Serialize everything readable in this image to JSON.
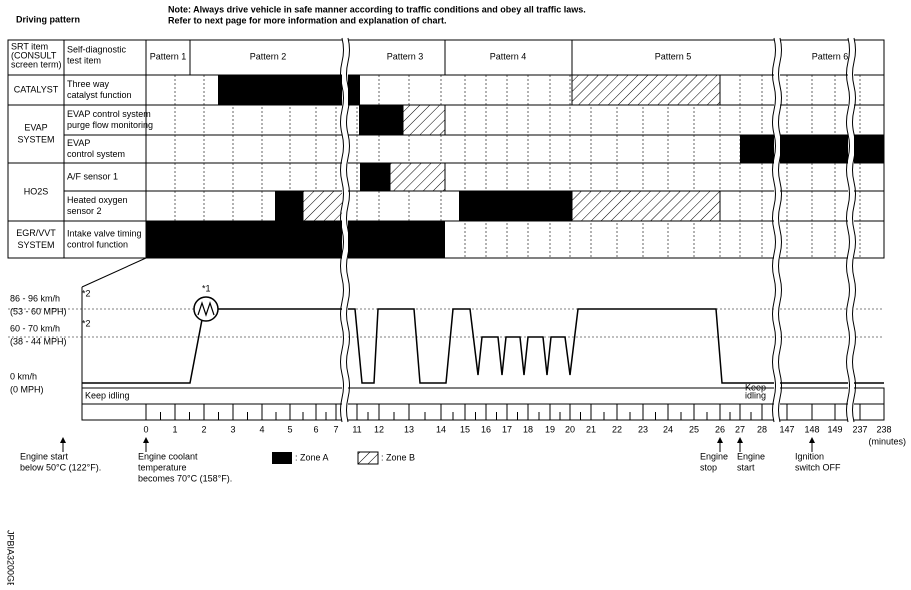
{
  "header": {
    "title": "Driving pattern",
    "note": [
      "Note: Always drive vehicle in safe manner according to traffic conditions and obey all traffic laws.",
      "Refer to next page for more information and explanation of chart."
    ]
  },
  "table": {
    "head": {
      "srt": [
        "SRT item",
        "(CONSULT",
        "screen term)"
      ],
      "test": [
        "Self-diagnostic",
        "test item"
      ],
      "patterns": [
        "Pattern 1",
        "Pattern 2",
        "Pattern 3",
        "Pattern 4",
        "Pattern 5",
        "Pattern 6"
      ]
    },
    "groups": [
      {
        "name": [
          "CATALYST"
        ],
        "items": [
          [
            "Three way",
            "catalyst function"
          ]
        ]
      },
      {
        "name": [
          "EVAP",
          "SYSTEM"
        ],
        "items": [
          [
            "EVAP control system",
            "purge flow monitoring"
          ],
          [
            "EVAP",
            "control system"
          ]
        ]
      },
      {
        "name": [
          "HO2S"
        ],
        "items": [
          [
            "A/F sensor 1"
          ],
          [
            "Heated oxygen",
            "sensor 2"
          ]
        ]
      },
      {
        "name": [
          "EGR/VVT",
          "SYSTEM"
        ],
        "items": [
          [
            "Intake valve timing",
            "control function"
          ]
        ]
      }
    ]
  },
  "speed": {
    "levels": [
      {
        "lines": [
          "86 - 96 km/h",
          "(53 - 60 MPH)"
        ],
        "note": "*2"
      },
      {
        "lines": [
          "60 - 70 km/h",
          "(38 - 44 MPH)"
        ],
        "note": "*2"
      },
      {
        "lines": [
          "0 km/h",
          "(0 MPH)"
        ]
      }
    ],
    "marker": "*1",
    "idle": [
      "Keep idling"
    ],
    "idle2": [
      "Keep",
      "idling"
    ]
  },
  "time": {
    "ticks": [
      0,
      1,
      2,
      3,
      4,
      5,
      6,
      7,
      11,
      12,
      13,
      14,
      15,
      16,
      17,
      18,
      19,
      20,
      21,
      22,
      23,
      24,
      25,
      26,
      27,
      28,
      147,
      148,
      149,
      237,
      238
    ],
    "unit": "(minutes)"
  },
  "events": [
    {
      "lines": [
        "Engine start",
        "below 50°C (122°F)."
      ]
    },
    {
      "lines": [
        "Engine coolant",
        "temperature",
        "becomes 70°C (158°F)."
      ]
    },
    {
      "lines": [
        "Engine",
        "stop"
      ]
    },
    {
      "lines": [
        "Engine",
        "start"
      ]
    },
    {
      "lines": [
        "Ignition",
        "switch OFF"
      ]
    }
  ],
  "legend": [
    ": Zone A",
    ": Zone B"
  ],
  "code": "JPBIA3200GB"
}
